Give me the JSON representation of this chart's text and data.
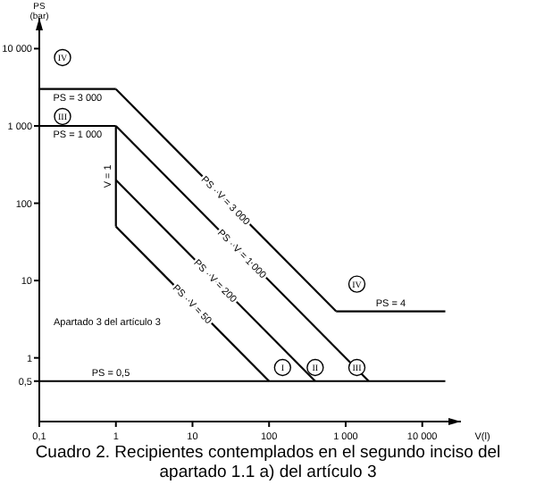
{
  "chart_data": {
    "type": "line",
    "xlabel": "V(l)",
    "ylabel": "PS (bar)",
    "log": "xy",
    "grid": false,
    "marker": "none",
    "line_style": "solid",
    "xlim": [
      0.1,
      32000
    ],
    "xticks": [
      {
        "value": 0.1,
        "label": "0,1"
      },
      1,
      10,
      100,
      {
        "value": 1000,
        "label": "1 000"
      },
      {
        "value": 10000,
        "label": "10 000"
      }
    ],
    "ylim": [
      0.15,
      25000
    ],
    "yticks": [
      {
        "value": 0.5,
        "label": "0,5"
      },
      1,
      10,
      100,
      {
        "value": 1000,
        "label": "1 000"
      },
      {
        "value": 10000,
        "label": "10 000"
      }
    ],
    "series": [
      {
        "name": "PS = 3 000",
        "color": "#000000",
        "x": [
          0.1,
          1
        ],
        "values": [
          3000,
          3000
        ]
      },
      {
        "name": "PS · V = 3 000",
        "color": "#000000",
        "x": [
          1,
          750
        ],
        "values": [
          3000,
          4
        ]
      },
      {
        "name": "PS = 4",
        "color": "#000000",
        "x": [
          750,
          20000
        ],
        "values": [
          4,
          4
        ]
      },
      {
        "name": "PS = 1 000",
        "color": "#000000",
        "x": [
          0.1,
          1
        ],
        "values": [
          1000,
          1000
        ]
      },
      {
        "name": "PS · V = 1 000",
        "color": "#000000",
        "x": [
          1,
          2000
        ],
        "values": [
          1000,
          0.5
        ]
      },
      {
        "name": "V = 1",
        "color": "#000000",
        "x": [
          1,
          1
        ],
        "values": [
          1000,
          50
        ]
      },
      {
        "name": "PS · V = 200",
        "color": "#000000",
        "x": [
          1,
          400
        ],
        "values": [
          200,
          0.5
        ]
      },
      {
        "name": "PS · V = 50",
        "color": "#000000",
        "x": [
          1,
          100
        ],
        "values": [
          50,
          0.5
        ]
      },
      {
        "name": "PS = 0,5",
        "color": "#000000",
        "x": [
          0.1,
          20000
        ],
        "values": [
          0.5,
          0.5
        ]
      }
    ],
    "annotations": [
      "IV",
      "III",
      {
        "text": "I",
        "x": 150,
        "y": 0.75
      },
      {
        "text": "II",
        "x": 400,
        "y": 0.75
      },
      {
        "text": "III",
        "x": 1400,
        "y": 0.75
      },
      {
        "text": "IV",
        "x": 1400,
        "y": 9
      },
      "Apartado 3 del artículo 3",
      "Cuadro 2.  Recipientes contemplados en el segundo inciso del apartado 1.1 a) del artículo 3"
    ]
  }
}
